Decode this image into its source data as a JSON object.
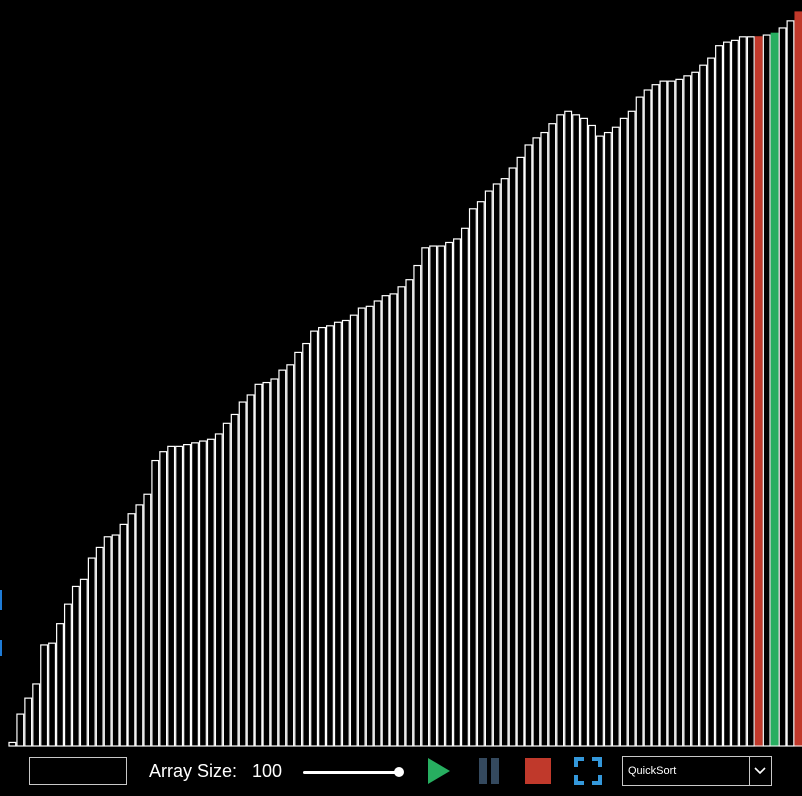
{
  "colors": {
    "bar_fill": "#000000",
    "bar_stroke": "#ffffff",
    "compare": "#c0392b",
    "pivot": "#27ae60",
    "play": "#27ae60",
    "pause": "#34495e",
    "stop": "#c0392b",
    "fullscreen": "#3498db"
  },
  "chart_data": {
    "type": "bar",
    "values": [
      2,
      18,
      27,
      35,
      57,
      58,
      69,
      80,
      90,
      94,
      106,
      112,
      118,
      119,
      125,
      131,
      136,
      142,
      161,
      166,
      169,
      169,
      170,
      171,
      172,
      173,
      176,
      182,
      187,
      194,
      198,
      204,
      205,
      207,
      212,
      215,
      222,
      227,
      234,
      236,
      237,
      239,
      240,
      243,
      247,
      248,
      251,
      254,
      255,
      259,
      263,
      271,
      281,
      282,
      282,
      284,
      286,
      292,
      303,
      307,
      313,
      317,
      320,
      326,
      332,
      339,
      343,
      346,
      351,
      356,
      358,
      356,
      354,
      350,
      344,
      346,
      349,
      354,
      358,
      366,
      370,
      373,
      375,
      375,
      376,
      378,
      380,
      384,
      388,
      395,
      397,
      398,
      400,
      400,
      400,
      401,
      402,
      405,
      409,
      414
    ],
    "highlight": {
      "compare_indices": [
        94,
        99
      ],
      "pivot_index": 96
    },
    "ylim": [
      0,
      414
    ]
  },
  "toolbar": {
    "status_text": "",
    "array_size_label": "Array Size:",
    "array_size_value": "100",
    "slider_value": 100,
    "algorithm_selected": "QuickSort",
    "icons": {
      "play": "play-icon",
      "pause": "pause-icon",
      "stop": "stop-icon",
      "fullscreen": "fullscreen-icon",
      "dropdown": "chevron-down-icon"
    }
  }
}
